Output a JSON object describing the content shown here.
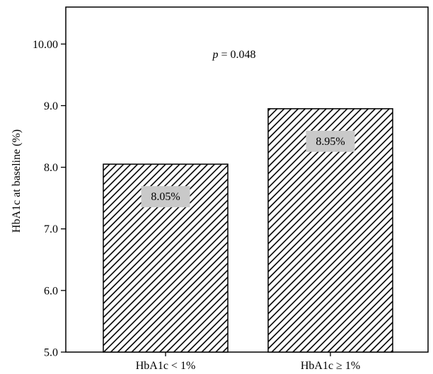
{
  "chart_data": {
    "type": "bar",
    "categories": [
      "HbA1c < 1%",
      "HbA1c ≥ 1%"
    ],
    "values": [
      8.05,
      8.95
    ],
    "data_labels": [
      "8.05%",
      "8.95%"
    ],
    "ylabel": "HbA1c at baseline (%)",
    "xlabel": "",
    "ylim": [
      5.0,
      10.6
    ],
    "yticks": [
      5.0,
      6.0,
      7.0,
      8.0,
      9.0,
      10.0
    ],
    "ytick_labels": [
      "5.0",
      "6.0",
      "7.0",
      "8.0",
      "9.0",
      "10.00"
    ],
    "annotation": {
      "prefix": "p",
      "text": " = 0.048"
    },
    "grid": false,
    "legend": "none",
    "bar_fill": "diagonal-hatch",
    "colors": {
      "hatch": "#000000",
      "bar_edge": "#000000",
      "label_box": "#c9c9c9"
    }
  }
}
